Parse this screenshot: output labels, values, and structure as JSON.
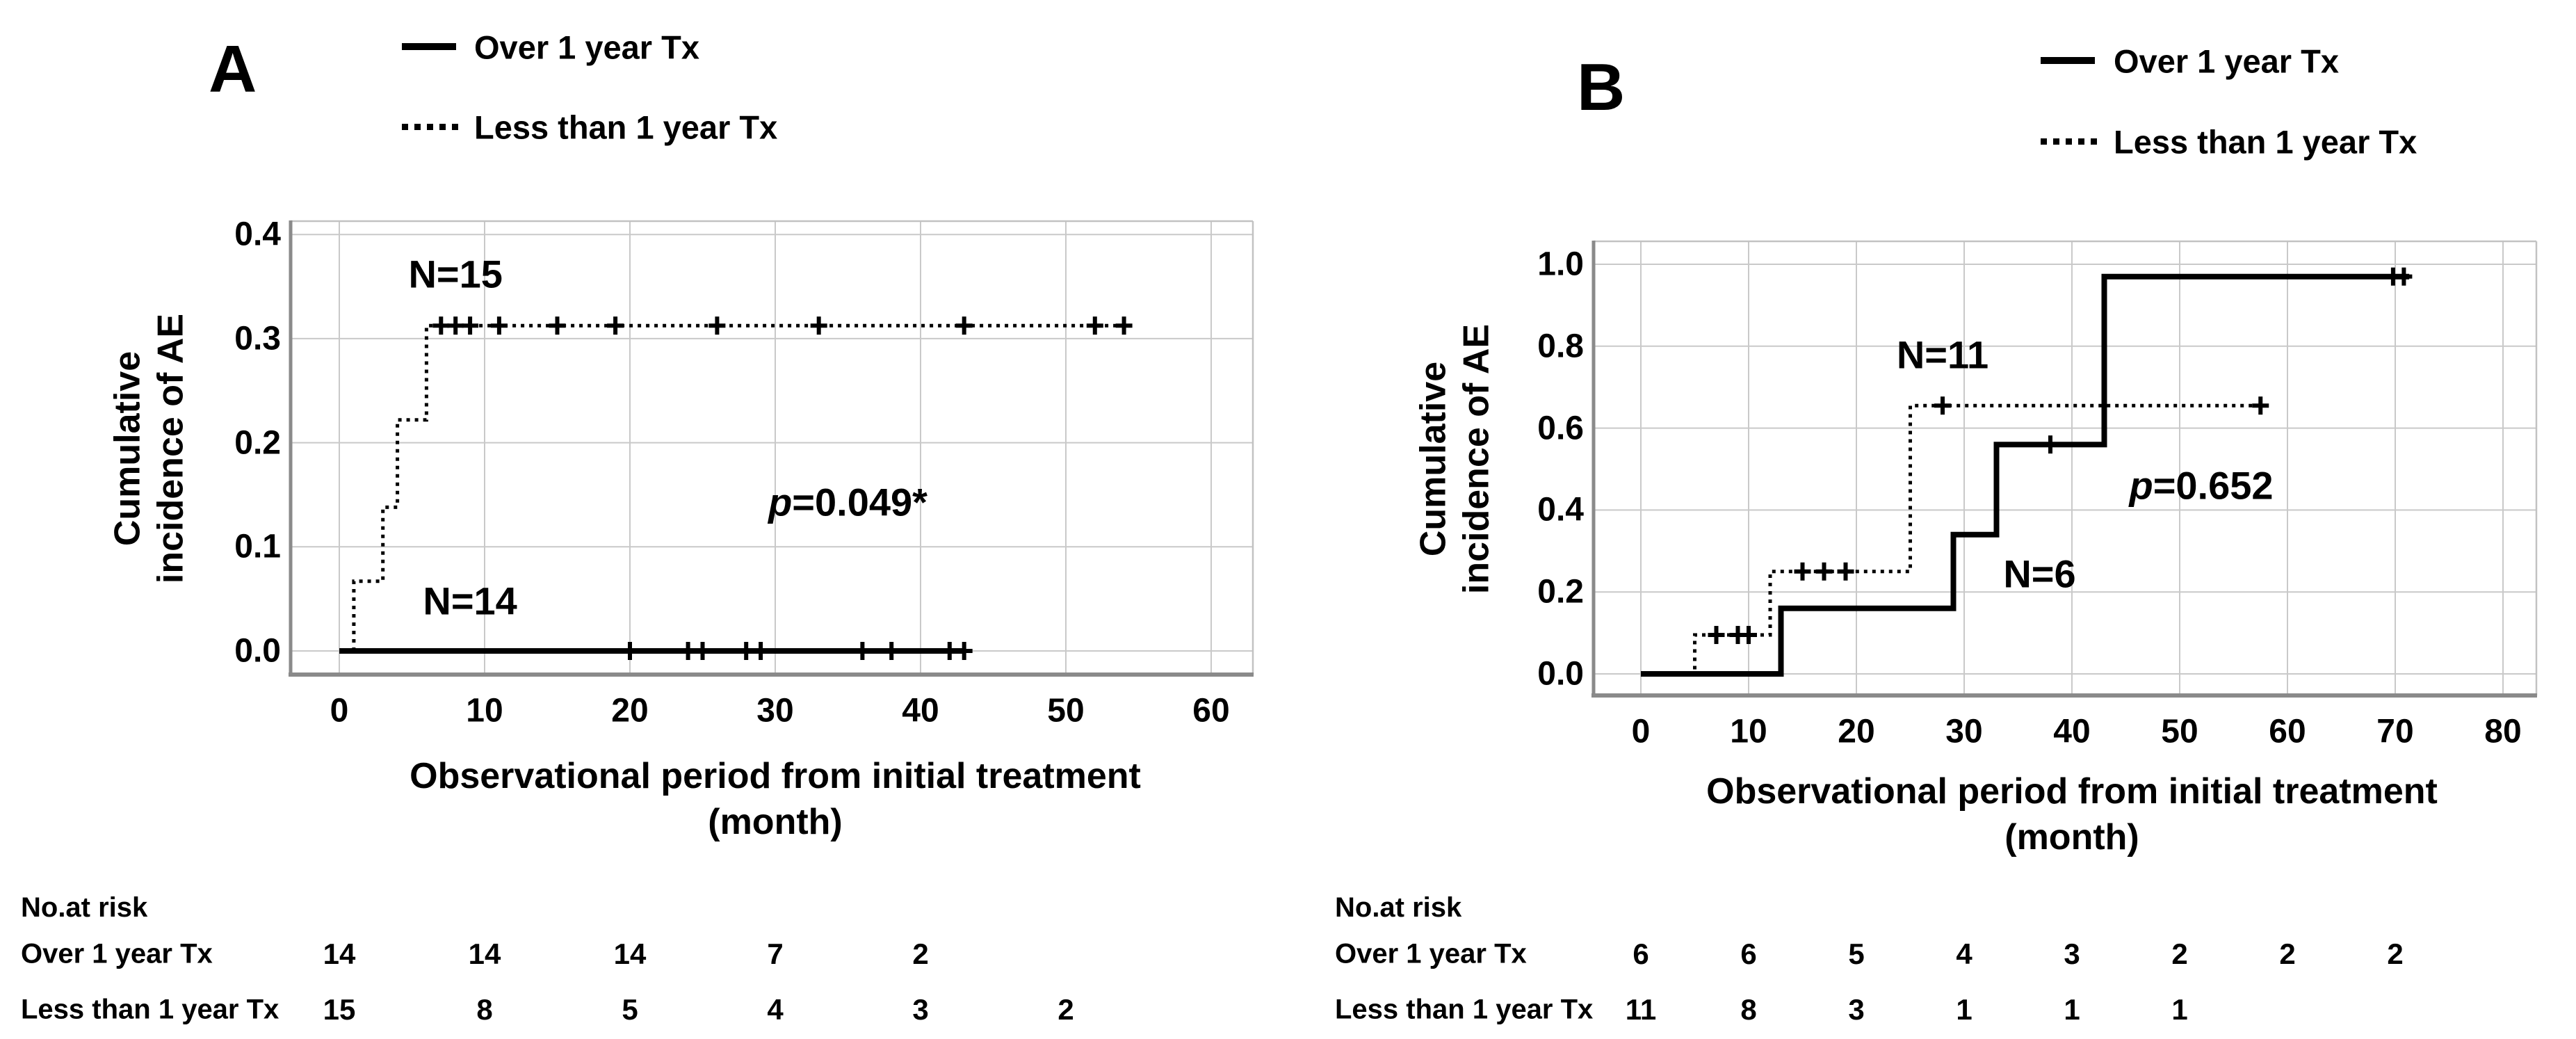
{
  "page": {
    "background": "#ffffff"
  },
  "colors": {
    "line": "#000000",
    "grid": "#c9c9c9",
    "frame": "#c2c2c2",
    "spine": "#8a8a8a",
    "text": "#000000"
  },
  "chart_data": [
    {
      "type": "line",
      "panel_label": "A",
      "xlabel_lines": [
        "Observational period from initial treatment",
        "(month)"
      ],
      "ylabel_lines": [
        "Cumulative",
        "incidence of AE"
      ],
      "xlabel": "Observational period from initial treatment (month)",
      "ylabel": "Cumulative incidence of AE",
      "xlim": [
        0,
        63
      ],
      "ylim": [
        0,
        0.42
      ],
      "xticks": [
        0,
        10,
        20,
        30,
        40,
        50,
        60
      ],
      "yticks": [
        0.0,
        0.1,
        0.2,
        0.3,
        0.4
      ],
      "grid": true,
      "legend_position": "top",
      "p_value": {
        "text": "p=0.049*",
        "x": 35,
        "y": 0.143
      },
      "series": [
        {
          "name": "Over 1 year Tx",
          "style": "solid",
          "n_label": {
            "text": "N=14",
            "x": 9,
            "y": 0.048
          },
          "steps": [
            [
              0,
              0
            ],
            [
              43,
              0
            ]
          ],
          "censors": [
            [
              20,
              0
            ],
            [
              24,
              0
            ],
            [
              25,
              0
            ],
            [
              28,
              0
            ],
            [
              29,
              0
            ],
            [
              36,
              0
            ],
            [
              38,
              0
            ],
            [
              42,
              0
            ],
            [
              43,
              0
            ]
          ]
        },
        {
          "name": "Less than 1 year Tx",
          "style": "dotted",
          "n_label": {
            "text": "N=15",
            "x": 8,
            "y": 0.362
          },
          "steps": [
            [
              1,
              0
            ],
            [
              1,
              0.067
            ],
            [
              3,
              0.067
            ],
            [
              3,
              0.138
            ],
            [
              4,
              0.138
            ],
            [
              4,
              0.222
            ],
            [
              6,
              0.222
            ],
            [
              6,
              0.3125
            ],
            [
              54,
              0.3125
            ]
          ],
          "censors": [
            [
              7,
              0.3125
            ],
            [
              8,
              0.3125
            ],
            [
              9,
              0.3125
            ],
            [
              11,
              0.3125
            ],
            [
              15,
              0.3125
            ],
            [
              19,
              0.3125
            ],
            [
              26,
              0.3125
            ],
            [
              33,
              0.3125
            ],
            [
              43,
              0.3125
            ],
            [
              52,
              0.3125
            ],
            [
              54,
              0.3125
            ]
          ]
        }
      ],
      "risk_table": {
        "title": "No.at risk",
        "rows": [
          {
            "label": "Over 1 year Tx",
            "months": [
              0,
              10,
              20,
              30,
              40
            ],
            "values": [
              "14",
              "14",
              "14",
              "7",
              "2"
            ]
          },
          {
            "label": "Less than 1 year Tx",
            "months": [
              0,
              10,
              20,
              30,
              40,
              50
            ],
            "values": [
              "15",
              "8",
              "5",
              "4",
              "3",
              "2"
            ]
          }
        ]
      }
    },
    {
      "type": "line",
      "panel_label": "B",
      "xlabel_lines": [
        "Observational period from initial treatment",
        "(month)"
      ],
      "ylabel_lines": [
        "Cumulative",
        "incidence of AE"
      ],
      "xlabel": "Observational period from initial treatment (month)",
      "ylabel": "Cumulative incidence of AE",
      "xlim": [
        0,
        83
      ],
      "ylim": [
        0,
        1.06
      ],
      "xticks": [
        0,
        10,
        20,
        30,
        40,
        50,
        60,
        70,
        80
      ],
      "yticks": [
        0.0,
        0.2,
        0.4,
        0.6,
        0.8,
        1.0
      ],
      "grid": true,
      "legend_position": "top",
      "p_value": {
        "text": "p=0.652",
        "x": 52,
        "y": 0.46
      },
      "series": [
        {
          "name": "Over 1 year Tx",
          "style": "solid",
          "n_label": {
            "text": "N=6",
            "x": 37,
            "y": 0.245
          },
          "steps": [
            [
              0,
              0
            ],
            [
              13,
              0
            ],
            [
              13,
              0.16
            ],
            [
              29,
              0.16
            ],
            [
              29,
              0.34
            ],
            [
              33,
              0.34
            ],
            [
              33,
              0.56
            ],
            [
              43,
              0.56
            ],
            [
              43,
              0.97
            ],
            [
              71.3,
              0.97
            ]
          ],
          "censors": [
            [
              38,
              0.56
            ],
            [
              69.8,
              0.97
            ],
            [
              70.8,
              0.97
            ]
          ]
        },
        {
          "name": "Less than 1 year Tx",
          "style": "dotted",
          "n_label": {
            "text": "N=11",
            "x": 28,
            "y": 0.78
          },
          "steps": [
            [
              0,
              0
            ],
            [
              5,
              0
            ],
            [
              5,
              0.095
            ],
            [
              12,
              0.095
            ],
            [
              12,
              0.25
            ],
            [
              25,
              0.25
            ],
            [
              25,
              0.655
            ],
            [
              58,
              0.655
            ]
          ],
          "censors": [
            [
              7,
              0.095
            ],
            [
              9,
              0.095
            ],
            [
              10,
              0.095
            ],
            [
              15,
              0.25
            ],
            [
              17,
              0.25
            ],
            [
              19,
              0.25
            ],
            [
              28,
              0.655
            ],
            [
              57.5,
              0.655
            ]
          ]
        }
      ],
      "risk_table": {
        "title": "No.at risk",
        "rows": [
          {
            "label": "Over 1 year Tx",
            "months": [
              0,
              10,
              20,
              30,
              40,
              50,
              60,
              70
            ],
            "values": [
              "6",
              "6",
              "5",
              "4",
              "3",
              "2",
              "2",
              "2"
            ]
          },
          {
            "label": "Less than 1 year Tx",
            "months": [
              0,
              10,
              20,
              30,
              40,
              50
            ],
            "values": [
              "11",
              "8",
              "3",
              "1",
              "1",
              "1"
            ]
          }
        ]
      }
    }
  ]
}
